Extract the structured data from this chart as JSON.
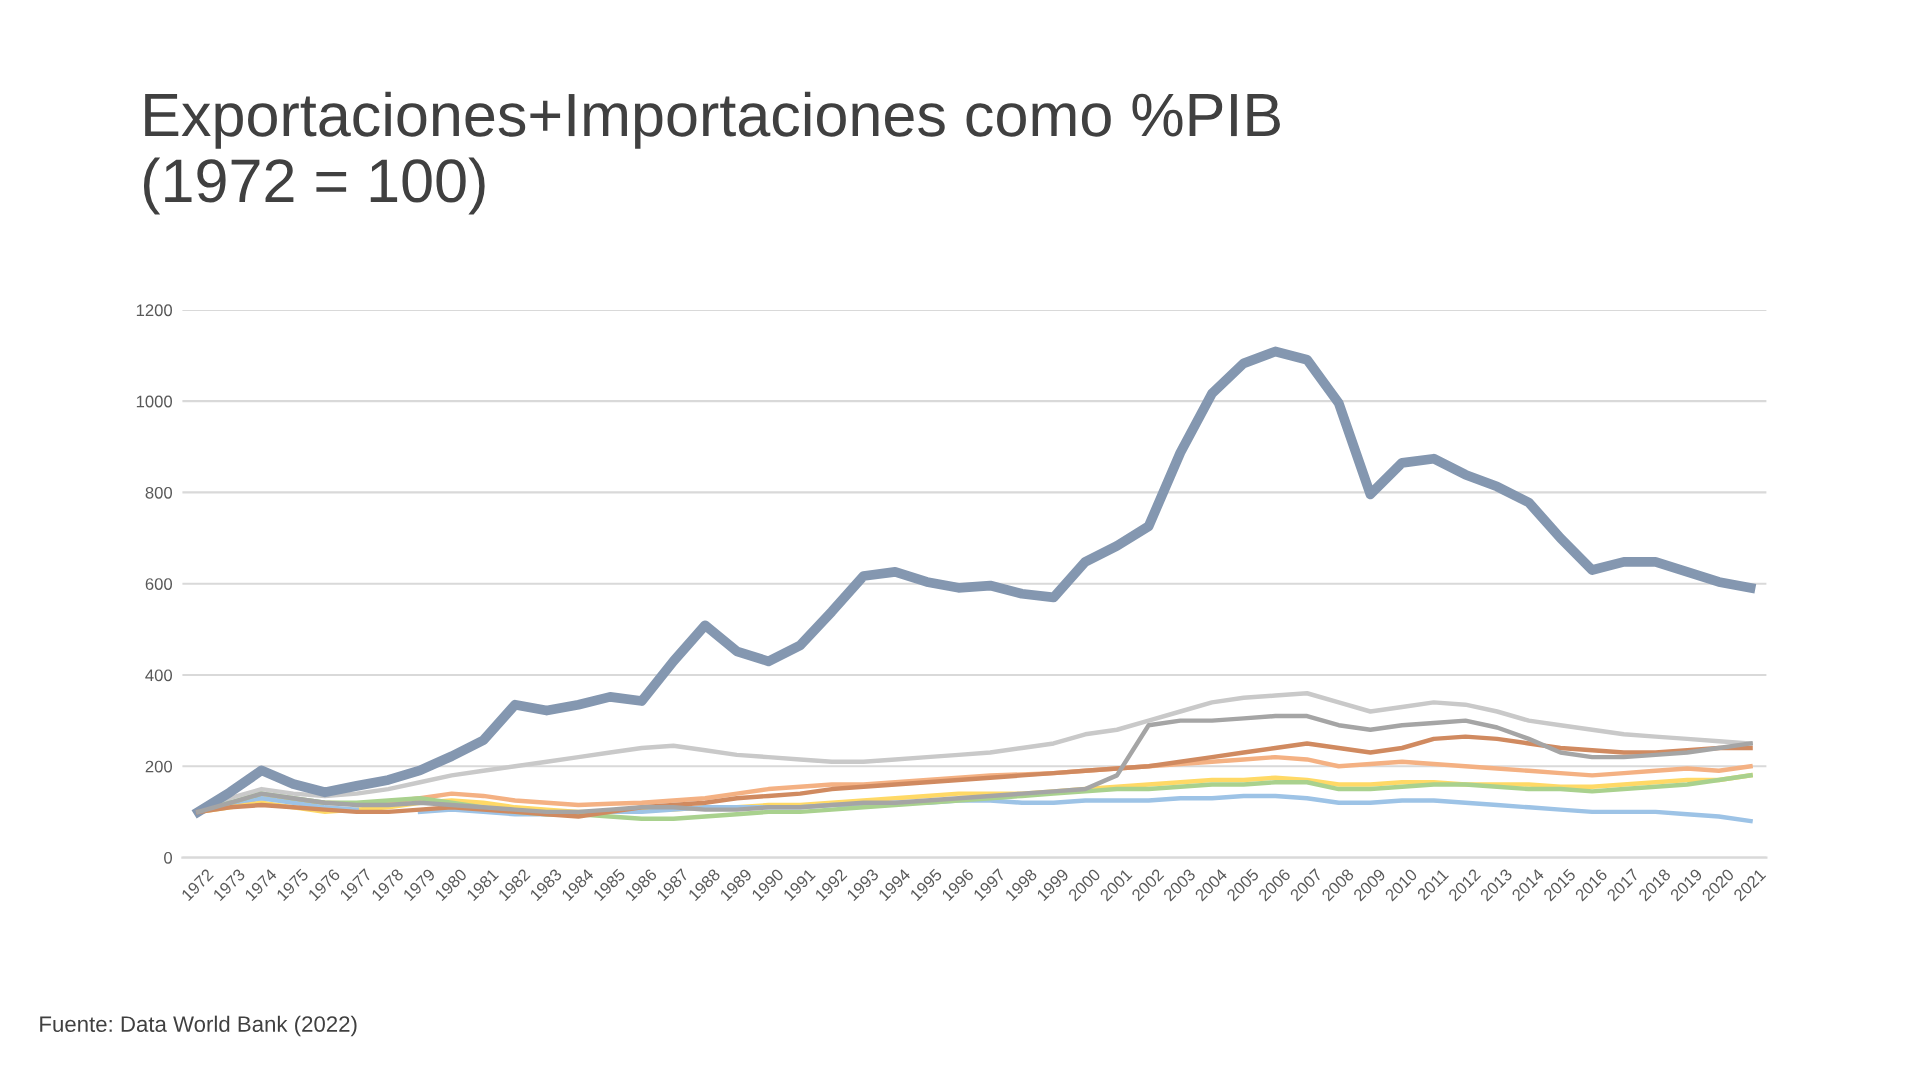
{
  "chart_data": {
    "type": "line",
    "title": "Exportaciones+Importaciones como %PIB\n(1972 = 100)",
    "categories": [
      "1972",
      "1973",
      "1974",
      "1975",
      "1976",
      "1977",
      "1978",
      "1979",
      "1980",
      "1981",
      "1982",
      "1983",
      "1984",
      "1985",
      "1986",
      "1987",
      "1988",
      "1989",
      "1990",
      "1991",
      "1992",
      "1993",
      "1994",
      "1995",
      "1996",
      "1997",
      "1998",
      "1999",
      "2000",
      "2001",
      "2002",
      "2003",
      "2004",
      "2005",
      "2006",
      "2007",
      "2008",
      "2009",
      "2010",
      "2011",
      "2012",
      "2013",
      "2014",
      "2015",
      "2016",
      "2017",
      "2018",
      "2019",
      "2020",
      "2021"
    ],
    "series": [
      {
        "color": "#f4b183",
        "values": [
          100,
          115,
          130,
          125,
          120,
          118,
          122,
          130,
          140,
          135,
          125,
          120,
          115,
          118,
          120,
          125,
          130,
          140,
          150,
          155,
          160,
          160,
          165,
          170,
          175,
          180,
          182,
          185,
          190,
          195,
          200,
          205,
          210,
          215,
          220,
          215,
          200,
          205,
          210,
          205,
          200,
          195,
          190,
          185,
          180,
          185,
          190,
          195,
          190,
          200
        ]
      },
      {
        "color": "#c9c9c9",
        "values": [
          100,
          130,
          150,
          140,
          135,
          140,
          150,
          165,
          180,
          190,
          200,
          210,
          220,
          230,
          240,
          245,
          235,
          225,
          220,
          215,
          210,
          210,
          215,
          220,
          225,
          230,
          240,
          250,
          270,
          280,
          300,
          320,
          340,
          350,
          355,
          360,
          340,
          320,
          330,
          340,
          335,
          320,
          300,
          290,
          280,
          270,
          265,
          260,
          255,
          250
        ]
      },
      {
        "color": "#ffd966",
        "values": [
          100,
          110,
          120,
          110,
          100,
          105,
          110,
          120,
          125,
          120,
          110,
          105,
          100,
          100,
          105,
          105,
          110,
          110,
          115,
          115,
          120,
          125,
          130,
          135,
          140,
          140,
          140,
          145,
          150,
          155,
          160,
          165,
          170,
          170,
          175,
          170,
          160,
          160,
          165,
          165,
          160,
          160,
          160,
          155,
          155,
          160,
          165,
          170,
          170,
          180
        ]
      },
      {
        "color": "#9dc3e6",
        "values": [
          100,
          120,
          130,
          120,
          110,
          105,
          null,
          100,
          105,
          100,
          95,
          95,
          95,
          100,
          100,
          105,
          110,
          110,
          110,
          110,
          115,
          115,
          120,
          120,
          125,
          125,
          120,
          120,
          125,
          125,
          125,
          130,
          130,
          135,
          135,
          130,
          120,
          120,
          125,
          125,
          120,
          115,
          110,
          105,
          100,
          100,
          100,
          95,
          90,
          80
        ]
      },
      {
        "color": "#a9d18e",
        "values": [
          100,
          120,
          140,
          130,
          120,
          120,
          125,
          130,
          120,
          110,
          100,
          95,
          95,
          90,
          85,
          85,
          90,
          95,
          100,
          100,
          105,
          110,
          115,
          120,
          125,
          130,
          135,
          140,
          145,
          150,
          150,
          155,
          160,
          160,
          165,
          165,
          150,
          150,
          155,
          160,
          160,
          155,
          150,
          150,
          145,
          150,
          155,
          160,
          170,
          180
        ]
      },
      {
        "color": "#8497b0",
        "values": [
          100,
          143,
          191,
          161,
          143,
          157,
          170,
          191,
          222,
          257,
          335,
          322,
          335,
          352,
          343,
          430,
          509,
          452,
          430,
          465,
          539,
          617,
          626,
          604,
          591,
          596,
          578,
          570,
          648,
          683,
          726,
          887,
          1017,
          1083,
          1109,
          1091,
          996,
          796,
          865,
          874,
          839,
          813,
          778,
          700,
          630,
          648,
          648,
          626,
          604,
          591
        ]
      },
      {
        "color": "#d08a60",
        "values": [
          100,
          110,
          115,
          110,
          105,
          100,
          100,
          105,
          110,
          105,
          100,
          95,
          90,
          100,
          110,
          115,
          120,
          130,
          135,
          140,
          150,
          155,
          160,
          165,
          170,
          175,
          180,
          185,
          190,
          195,
          200,
          210,
          220,
          230,
          240,
          250,
          240,
          230,
          240,
          260,
          265,
          260,
          250,
          240,
          235,
          230,
          230,
          235,
          240,
          240
        ]
      },
      {
        "color": "#a5a5a5",
        "values": [
          100,
          120,
          140,
          130,
          120,
          115,
          115,
          120,
          115,
          110,
          105,
          100,
          100,
          105,
          110,
          110,
          105,
          105,
          110,
          110,
          115,
          120,
          120,
          125,
          130,
          135,
          140,
          145,
          150,
          180,
          290,
          300,
          300,
          305,
          310,
          310,
          290,
          280,
          290,
          295,
          300,
          285,
          260,
          230,
          220,
          220,
          225,
          230,
          240,
          250
        ]
      }
    ],
    "ylim": [
      0,
      1200
    ],
    "yticks": [
      0,
      200,
      400,
      600,
      800,
      1000,
      1200
    ],
    "grid": "y",
    "annotations": [
      "Fuente: Data World Bank (2022)"
    ]
  }
}
